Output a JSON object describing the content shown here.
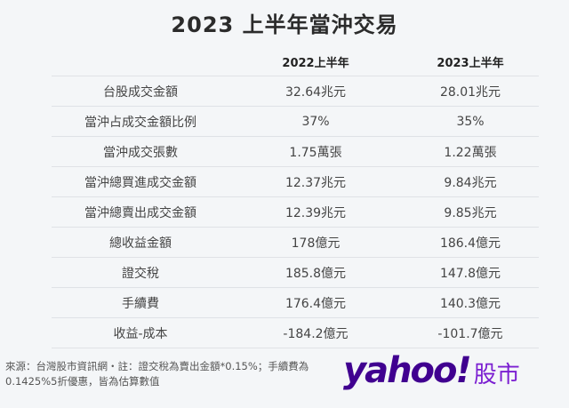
{
  "title": "2023 上半年當沖交易",
  "table": {
    "headers": [
      "",
      "2022上半年",
      "2023上半年"
    ],
    "rows": [
      [
        "台股成交金額",
        "32.64兆元",
        "28.01兆元"
      ],
      [
        "當沖占成交金額比例",
        "37%",
        "35%"
      ],
      [
        "當沖成交張數",
        "1.75萬張",
        "1.22萬張"
      ],
      [
        "當沖總買進成交金額",
        "12.37兆元",
        "9.84兆元"
      ],
      [
        "當沖總賣出成交金額",
        "12.39兆元",
        "9.85兆元"
      ],
      [
        "總收益金額",
        "178億元",
        "186.4億元"
      ],
      [
        "證交稅",
        "185.8億元",
        "147.8億元"
      ],
      [
        "手續費",
        "176.4億元",
        "140.3億元"
      ],
      [
        "收益-成本",
        "-184.2億元",
        "-101.7億元"
      ]
    ]
  },
  "note": {
    "line1": "來源：台灣股市資訊網・註：證交稅為賣出金額*0.15%；手續費為",
    "line2": "0.1425%5折優惠，皆為估算數值"
  },
  "logo": {
    "brand": "yahoo!",
    "section": "股市",
    "brand_color": "#400090",
    "section_color": "#7b1fd1"
  }
}
